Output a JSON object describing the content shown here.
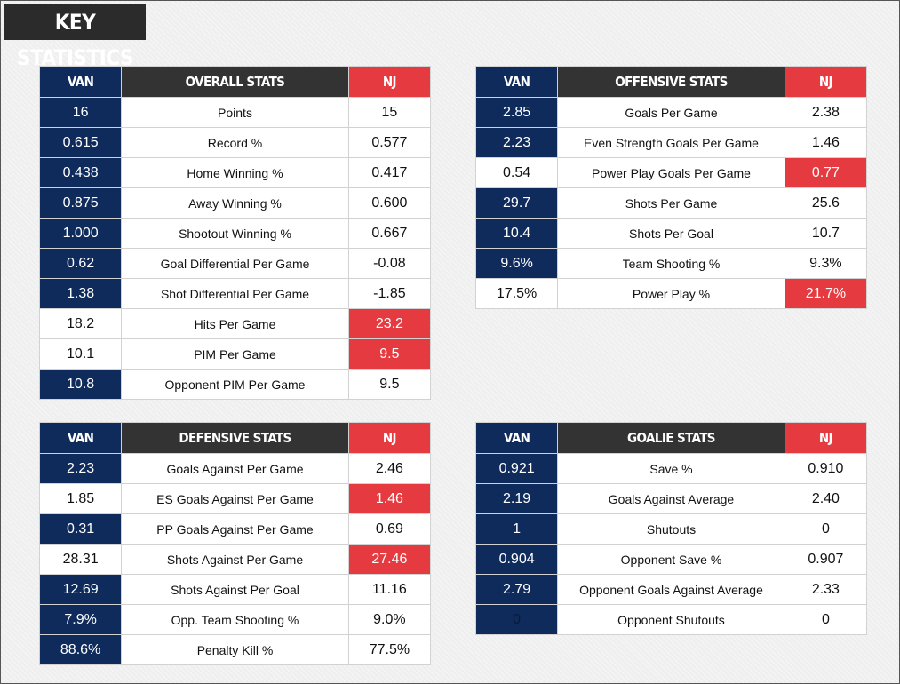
{
  "title": "KEY STATISTICS",
  "tables": {
    "overall": {
      "left_header": "VAN",
      "title": "OVERALL STATS",
      "right_header": "NJ",
      "rows": [
        {
          "van": "16",
          "label": "Points",
          "nj": "15"
        },
        {
          "van": "0.615",
          "label": "Record %",
          "nj": "0.577"
        },
        {
          "van": "0.438",
          "label": "Home Winning %",
          "nj": "0.417"
        },
        {
          "van": "0.875",
          "label": "Away Winning %",
          "nj": "0.600"
        },
        {
          "van": "1.000",
          "label": "Shootout Winning %",
          "nj": "0.667"
        },
        {
          "van": "0.62",
          "label": "Goal Differential Per Game",
          "nj": "-0.08"
        },
        {
          "van": "1.38",
          "label": "Shot Differential Per Game",
          "nj": "-1.85"
        },
        {
          "van": "18.2",
          "label": "Hits Per Game",
          "nj": "23.2"
        },
        {
          "van": "10.1",
          "label": "PIM Per Game",
          "nj": "9.5"
        },
        {
          "van": "10.8",
          "label": "Opponent PIM Per Game",
          "nj": "9.5"
        }
      ]
    },
    "offensive": {
      "left_header": "VAN",
      "title": "OFFENSIVE STATS",
      "right_header": "NJ",
      "rows": [
        {
          "van": "2.85",
          "label": "Goals Per Game",
          "nj": "2.38"
        },
        {
          "van": "2.23",
          "label": "Even Strength Goals Per Game",
          "nj": "1.46"
        },
        {
          "van": "0.54",
          "label": "Power Play Goals Per Game",
          "nj": "0.77"
        },
        {
          "van": "29.7",
          "label": "Shots Per Game",
          "nj": "25.6"
        },
        {
          "van": "10.4",
          "label": "Shots Per Goal",
          "nj": "10.7"
        },
        {
          "van": "9.6%",
          "label": "Team Shooting %",
          "nj": "9.3%"
        },
        {
          "van": "17.5%",
          "label": "Power Play %",
          "nj": "21.7%"
        }
      ]
    },
    "defensive": {
      "left_header": "VAN",
      "title": "DEFENSIVE STATS",
      "right_header": "NJ",
      "rows": [
        {
          "van": "2.23",
          "label": "Goals Against Per Game",
          "nj": "2.46"
        },
        {
          "van": "1.85",
          "label": "ES Goals Against Per Game",
          "nj": "1.46"
        },
        {
          "van": "0.31",
          "label": "PP Goals Against Per Game",
          "nj": "0.69"
        },
        {
          "van": "28.31",
          "label": "Shots Against Per Game",
          "nj": "27.46"
        },
        {
          "van": "12.69",
          "label": "Shots Against Per Goal",
          "nj": "11.16"
        },
        {
          "van": "7.9%",
          "label": "Opp. Team Shooting %",
          "nj": "9.0%"
        },
        {
          "van": "88.6%",
          "label": "Penalty Kill %",
          "nj": "77.5%"
        }
      ]
    },
    "goalie": {
      "left_header": "VAN",
      "title": "GOALIE STATS",
      "right_header": "NJ",
      "rows": [
        {
          "van": "0.921",
          "label": "Save %",
          "nj": "0.910"
        },
        {
          "van": "2.19",
          "label": "Goals Against Average",
          "nj": "2.40"
        },
        {
          "van": "1",
          "label": "Shutouts",
          "nj": "0"
        },
        {
          "van": "0.904",
          "label": "Opponent Save %",
          "nj": "0.907"
        },
        {
          "van": "2.79",
          "label": "Opponent Goals Against Average",
          "nj": "2.33"
        },
        {
          "van": "0",
          "label": "Opponent Shutouts",
          "nj": "0"
        }
      ]
    }
  },
  "colors": {
    "van_blue": "#0f2b5c",
    "nj_red": "#e53a3f",
    "header_dark": "#333333"
  }
}
